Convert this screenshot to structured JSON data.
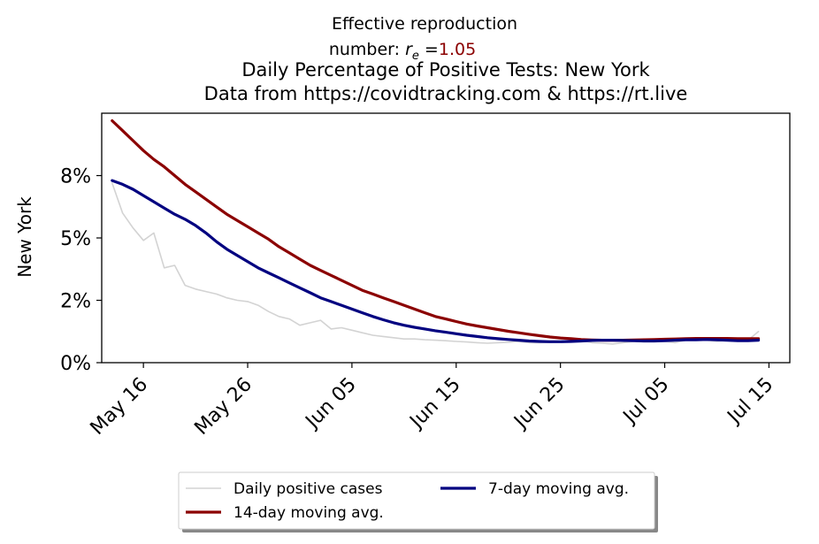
{
  "annotation": {
    "line1": "Effective reproduction",
    "line2_prefix": "number: ",
    "line2_symbol": "r",
    "line2_subscript": "e",
    "line2_equals": " =",
    "value": "1.05",
    "value_color": "#8b0000"
  },
  "chart_data": {
    "type": "line",
    "title": "Daily Percentage of Positive Tests: New York",
    "subtitle": "Data from https://covidtracking.com & https://rt.live",
    "ylabel": "New York",
    "xlabel": "",
    "x_ticks": [
      "2020-05-16",
      "2020-05-26",
      "2020-06-05",
      "2020-06-15",
      "2020-06-25",
      "2020-07-05",
      "2020-07-15"
    ],
    "x_tick_labels": [
      "May 16",
      "May 26",
      "Jun 05",
      "Jun 15",
      "Jun 25",
      "Jul 05",
      "Jul 15"
    ],
    "y_ticks": [
      0,
      2.5,
      5,
      7.5
    ],
    "y_tick_labels": [
      "0%",
      "2%",
      "5%",
      "8%"
    ],
    "xlim": [
      "2020-05-12",
      "2020-07-17"
    ],
    "ylim": [
      0,
      10
    ],
    "grid": false,
    "legend_position": "bottom-center",
    "x": [
      "2020-05-13",
      "2020-05-14",
      "2020-05-15",
      "2020-05-16",
      "2020-05-17",
      "2020-05-18",
      "2020-05-19",
      "2020-05-20",
      "2020-05-21",
      "2020-05-22",
      "2020-05-23",
      "2020-05-24",
      "2020-05-25",
      "2020-05-26",
      "2020-05-27",
      "2020-05-28",
      "2020-05-29",
      "2020-05-30",
      "2020-05-31",
      "2020-06-01",
      "2020-06-02",
      "2020-06-03",
      "2020-06-04",
      "2020-06-05",
      "2020-06-06",
      "2020-06-07",
      "2020-06-08",
      "2020-06-09",
      "2020-06-10",
      "2020-06-11",
      "2020-06-12",
      "2020-06-13",
      "2020-06-14",
      "2020-06-15",
      "2020-06-16",
      "2020-06-17",
      "2020-06-18",
      "2020-06-19",
      "2020-06-20",
      "2020-06-21",
      "2020-06-22",
      "2020-06-23",
      "2020-06-24",
      "2020-06-25",
      "2020-06-26",
      "2020-06-27",
      "2020-06-28",
      "2020-06-29",
      "2020-06-30",
      "2020-07-01",
      "2020-07-02",
      "2020-07-03",
      "2020-07-04",
      "2020-07-05",
      "2020-07-06",
      "2020-07-07",
      "2020-07-08",
      "2020-07-09",
      "2020-07-10",
      "2020-07-11",
      "2020-07-12",
      "2020-07-13",
      "2020-07-14"
    ],
    "series": [
      {
        "name": "Daily positive cases",
        "color": "#d3d3d3",
        "values": [
          7.2,
          6.0,
          5.4,
          4.9,
          5.2,
          3.8,
          3.9,
          3.1,
          2.95,
          2.85,
          2.75,
          2.6,
          2.5,
          2.45,
          2.3,
          2.05,
          1.85,
          1.75,
          1.5,
          1.6,
          1.7,
          1.35,
          1.4,
          1.3,
          1.2,
          1.1,
          1.05,
          1.0,
          0.95,
          0.95,
          0.92,
          0.9,
          0.88,
          0.85,
          0.83,
          0.8,
          0.78,
          0.8,
          0.82,
          0.85,
          0.8,
          0.8,
          0.82,
          0.85,
          0.88,
          0.9,
          0.8,
          0.78,
          0.75,
          0.8,
          0.85,
          0.95,
          0.9,
          0.85,
          0.8,
          0.9,
          0.95,
          0.9,
          0.85,
          0.9,
          0.95,
          0.9,
          1.25
        ]
      },
      {
        "name": "14-day moving avg.",
        "color": "#8b0000",
        "values": [
          9.7,
          9.3,
          8.9,
          8.5,
          8.15,
          7.85,
          7.5,
          7.15,
          6.85,
          6.55,
          6.25,
          5.95,
          5.7,
          5.45,
          5.2,
          4.95,
          4.65,
          4.4,
          4.15,
          3.9,
          3.7,
          3.5,
          3.3,
          3.1,
          2.9,
          2.75,
          2.6,
          2.45,
          2.3,
          2.15,
          2.0,
          1.85,
          1.75,
          1.65,
          1.55,
          1.47,
          1.4,
          1.33,
          1.26,
          1.2,
          1.14,
          1.08,
          1.03,
          0.99,
          0.96,
          0.93,
          0.91,
          0.9,
          0.9,
          0.9,
          0.91,
          0.92,
          0.93,
          0.94,
          0.95,
          0.96,
          0.97,
          0.97,
          0.97,
          0.97,
          0.96,
          0.96,
          0.96
        ]
      },
      {
        "name": "7-day moving avg.",
        "color": "#000080",
        "values": [
          7.3,
          7.15,
          6.95,
          6.7,
          6.45,
          6.2,
          5.95,
          5.75,
          5.5,
          5.2,
          4.85,
          4.55,
          4.3,
          4.05,
          3.8,
          3.6,
          3.4,
          3.2,
          3.0,
          2.8,
          2.6,
          2.45,
          2.3,
          2.15,
          2.0,
          1.85,
          1.72,
          1.6,
          1.5,
          1.42,
          1.35,
          1.28,
          1.22,
          1.16,
          1.1,
          1.05,
          1.0,
          0.96,
          0.93,
          0.9,
          0.87,
          0.85,
          0.84,
          0.84,
          0.85,
          0.87,
          0.89,
          0.9,
          0.9,
          0.89,
          0.88,
          0.87,
          0.87,
          0.88,
          0.9,
          0.92,
          0.92,
          0.93,
          0.92,
          0.9,
          0.88,
          0.88,
          0.9
        ]
      }
    ]
  }
}
